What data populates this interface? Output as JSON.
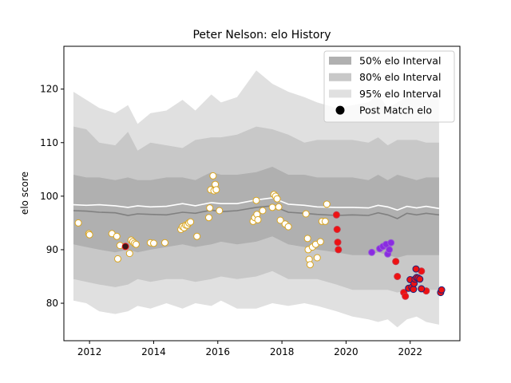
{
  "chart_data": {
    "type": "scatter",
    "title": "Peter Nelson: elo History",
    "xlabel": "",
    "ylabel": "elo score",
    "xlim": [
      2011.2,
      2023.55
    ],
    "ylim": [
      73,
      128
    ],
    "x_ticks": [
      2012,
      2014,
      2016,
      2018,
      2020,
      2022
    ],
    "y_ticks": [
      80,
      90,
      100,
      110,
      120
    ],
    "grid": false,
    "legend_position": "top-right",
    "legend": [
      {
        "label": "50% elo Interval",
        "kind": "band",
        "color": "#b0b0b0"
      },
      {
        "label": "80% elo Interval",
        "kind": "band",
        "color": "#c8c8c8"
      },
      {
        "label": "95% elo Interval",
        "kind": "band",
        "color": "#e0e0e0"
      },
      {
        "label": "Post Match elo",
        "kind": "marker",
        "color": "#000000"
      }
    ],
    "colors": {
      "band95": "#e0e0e0",
      "band80": "#c8c8c8",
      "band50": "#b0b0b0",
      "median_line": "#808080",
      "mean_line": "#ffffff",
      "point_early_fill": "#ffffff",
      "point_early_edge": "#daa520",
      "point_red": "#ee1111",
      "point_purple": "#8a2be2",
      "point_navy_edge": "#1a237e"
    },
    "band95": {
      "x": [
        2011.5,
        2011.9,
        2012.3,
        2012.8,
        2013.2,
        2013.5,
        2013.9,
        2014.4,
        2014.9,
        2015.3,
        2015.8,
        2016.1,
        2016.6,
        2017.2,
        2017.7,
        2018.2,
        2018.7,
        2019.1,
        2019.7,
        2020.2,
        2020.7,
        2021.0,
        2021.3,
        2021.6,
        2021.9,
        2022.2,
        2022.5,
        2022.9
      ],
      "upper": [
        119.5,
        118.0,
        116.5,
        115.5,
        117.0,
        113.5,
        115.5,
        116.0,
        118.0,
        116.0,
        119.0,
        117.5,
        118.5,
        123.5,
        121.0,
        119.5,
        118.5,
        117.5,
        116.5,
        117.0,
        117.5,
        119.0,
        116.5,
        117.5,
        118.5,
        119.0,
        118.0,
        118.5
      ],
      "lower": [
        80.5,
        80.0,
        78.5,
        78.0,
        78.5,
        79.5,
        79.0,
        80.0,
        79.0,
        80.0,
        79.5,
        80.5,
        79.0,
        79.0,
        80.0,
        79.5,
        80.0,
        79.5,
        78.5,
        77.5,
        77.0,
        76.5,
        77.0,
        75.5,
        77.0,
        77.5,
        76.5,
        76.0
      ]
    },
    "band80": {
      "x": [
        2011.5,
        2011.9,
        2012.3,
        2012.8,
        2013.2,
        2013.5,
        2013.9,
        2014.4,
        2014.9,
        2015.3,
        2015.8,
        2016.1,
        2016.6,
        2017.2,
        2017.7,
        2018.2,
        2018.7,
        2019.1,
        2019.7,
        2020.2,
        2020.7,
        2021.0,
        2021.3,
        2021.6,
        2021.9,
        2022.2,
        2022.5,
        2022.9
      ],
      "upper": [
        113.0,
        112.5,
        110.0,
        109.5,
        112.0,
        108.5,
        110.0,
        109.5,
        109.0,
        110.5,
        111.0,
        111.0,
        111.5,
        113.0,
        112.5,
        111.5,
        110.0,
        110.5,
        110.5,
        110.5,
        110.0,
        111.0,
        109.5,
        110.5,
        110.5,
        110.5,
        110.0,
        110.0
      ],
      "lower": [
        84.5,
        84.0,
        83.5,
        83.0,
        83.5,
        84.5,
        84.0,
        84.5,
        84.5,
        84.0,
        84.5,
        85.0,
        84.5,
        85.0,
        86.0,
        84.5,
        84.5,
        84.5,
        83.5,
        82.5,
        82.5,
        82.5,
        82.5,
        82.0,
        82.5,
        82.5,
        82.5,
        82.5
      ]
    },
    "band50": {
      "x": [
        2011.5,
        2011.9,
        2012.3,
        2012.8,
        2013.2,
        2013.5,
        2013.9,
        2014.4,
        2014.9,
        2015.3,
        2015.8,
        2016.1,
        2016.6,
        2017.2,
        2017.7,
        2018.2,
        2018.7,
        2019.1,
        2019.7,
        2020.2,
        2020.7,
        2021.0,
        2021.3,
        2021.6,
        2021.9,
        2022.2,
        2022.5,
        2022.9
      ],
      "upper": [
        104.0,
        103.5,
        103.5,
        103.0,
        103.5,
        103.0,
        103.0,
        103.5,
        103.5,
        103.0,
        104.5,
        104.0,
        104.0,
        104.5,
        105.5,
        104.0,
        104.0,
        103.5,
        103.5,
        103.5,
        103.0,
        104.0,
        103.0,
        104.0,
        103.5,
        103.0,
        103.5,
        103.5
      ],
      "lower": [
        91.0,
        90.5,
        90.0,
        89.5,
        90.0,
        89.5,
        90.0,
        90.5,
        91.0,
        90.5,
        91.0,
        91.5,
        91.0,
        91.5,
        92.5,
        91.0,
        90.5,
        90.0,
        89.5,
        89.0,
        89.0,
        89.5,
        89.0,
        88.5,
        89.0,
        89.0,
        89.0,
        89.0
      ]
    },
    "median_line": {
      "x": [
        2011.5,
        2011.9,
        2012.3,
        2012.8,
        2013.2,
        2013.5,
        2013.9,
        2014.4,
        2014.9,
        2015.3,
        2015.8,
        2016.1,
        2016.6,
        2017.2,
        2017.7,
        2018.2,
        2018.7,
        2019.1,
        2019.7,
        2020.2,
        2020.7,
        2021.0,
        2021.3,
        2021.6,
        2021.9,
        2022.2,
        2022.5,
        2022.9
      ],
      "y": [
        97.3,
        97.2,
        97.0,
        96.9,
        96.4,
        96.7,
        96.6,
        96.5,
        97.0,
        96.8,
        97.4,
        97.1,
        97.3,
        97.9,
        98.2,
        97.0,
        96.8,
        96.6,
        96.4,
        96.5,
        96.4,
        96.9,
        96.5,
        95.8,
        96.8,
        96.5,
        96.8,
        96.5
      ]
    },
    "mean_line": {
      "x": [
        2011.5,
        2011.9,
        2012.3,
        2012.8,
        2013.2,
        2013.5,
        2013.9,
        2014.4,
        2014.9,
        2015.3,
        2015.8,
        2016.1,
        2016.6,
        2017.2,
        2017.7,
        2018.2,
        2018.7,
        2019.1,
        2019.7,
        2020.2,
        2020.7,
        2021.0,
        2021.3,
        2021.6,
        2021.9,
        2022.2,
        2022.5,
        2022.9
      ],
      "y": [
        98.4,
        98.3,
        98.4,
        98.2,
        97.9,
        98.2,
        98.0,
        98.1,
        98.6,
        98.2,
        98.8,
        98.6,
        98.6,
        99.3,
        99.7,
        98.5,
        98.3,
        98.0,
        97.9,
        97.9,
        97.8,
        98.3,
        98.0,
        97.4,
        98.1,
        97.8,
        98.1,
        97.7
      ]
    },
    "series": [
      {
        "style": "early",
        "points": [
          [
            2011.65,
            95.0
          ],
          [
            2011.98,
            93.0
          ],
          [
            2012.0,
            92.8
          ],
          [
            2012.7,
            93.0
          ],
          [
            2012.85,
            92.5
          ],
          [
            2012.88,
            88.3
          ],
          [
            2012.95,
            90.8
          ],
          [
            2013.25,
            89.3
          ],
          [
            2013.3,
            91.8
          ],
          [
            2013.35,
            91.5
          ],
          [
            2013.4,
            91.2
          ],
          [
            2013.45,
            91.0
          ],
          [
            2013.9,
            91.3
          ],
          [
            2014.0,
            91.2
          ],
          [
            2014.35,
            91.3
          ],
          [
            2014.85,
            93.8
          ],
          [
            2014.9,
            94.3
          ],
          [
            2014.95,
            94.1
          ],
          [
            2015.0,
            94.6
          ],
          [
            2015.05,
            94.6
          ],
          [
            2015.1,
            95.0
          ],
          [
            2015.15,
            95.2
          ],
          [
            2015.35,
            92.5
          ],
          [
            2015.72,
            96.0
          ],
          [
            2015.75,
            97.8
          ],
          [
            2015.78,
            101.2
          ],
          [
            2015.85,
            103.8
          ],
          [
            2015.88,
            101.0
          ],
          [
            2015.92,
            102.2
          ],
          [
            2015.95,
            101.2
          ],
          [
            2016.05,
            97.3
          ],
          [
            2017.1,
            95.3
          ],
          [
            2017.15,
            96.0
          ],
          [
            2017.2,
            99.2
          ],
          [
            2017.22,
            96.6
          ],
          [
            2017.25,
            95.6
          ],
          [
            2017.4,
            97.3
          ],
          [
            2017.7,
            97.9
          ],
          [
            2017.75,
            100.3
          ],
          [
            2017.8,
            100.0
          ],
          [
            2017.85,
            99.5
          ],
          [
            2017.9,
            98.0
          ],
          [
            2017.95,
            95.5
          ],
          [
            2018.1,
            94.8
          ],
          [
            2018.2,
            94.3
          ],
          [
            2018.75,
            96.7
          ],
          [
            2018.8,
            92.1
          ],
          [
            2018.82,
            90.0
          ],
          [
            2018.85,
            88.2
          ],
          [
            2018.88,
            87.2
          ],
          [
            2018.95,
            90.5
          ],
          [
            2019.05,
            91.0
          ],
          [
            2019.1,
            88.5
          ],
          [
            2019.2,
            91.5
          ],
          [
            2019.25,
            95.3
          ],
          [
            2019.35,
            95.3
          ],
          [
            2019.4,
            98.5
          ]
        ]
      },
      {
        "style": "dark",
        "points": [
          [
            2013.12,
            90.6
          ]
        ]
      },
      {
        "style": "red",
        "points": [
          [
            2019.7,
            96.5
          ],
          [
            2019.72,
            93.8
          ],
          [
            2019.74,
            91.4
          ],
          [
            2019.76,
            90.0
          ],
          [
            2021.55,
            87.8
          ],
          [
            2021.6,
            85.0
          ],
          [
            2021.8,
            82.0
          ],
          [
            2021.85,
            81.3
          ],
          [
            2022.35,
            86.0
          ],
          [
            2022.5,
            82.3
          ]
        ]
      },
      {
        "style": "purple",
        "points": [
          [
            2020.8,
            89.5
          ],
          [
            2021.05,
            90.2
          ],
          [
            2021.15,
            90.6
          ],
          [
            2021.25,
            91.0
          ],
          [
            2021.3,
            89.2
          ],
          [
            2021.35,
            90.0
          ],
          [
            2021.4,
            91.3
          ]
        ]
      },
      {
        "style": "navy",
        "points": [
          [
            2021.95,
            82.8
          ],
          [
            2022.0,
            84.4
          ],
          [
            2022.05,
            83.0
          ],
          [
            2022.1,
            82.6
          ],
          [
            2022.12,
            83.7
          ],
          [
            2022.15,
            84.5
          ],
          [
            2022.18,
            86.4
          ],
          [
            2022.2,
            84.8
          ],
          [
            2022.25,
            84.7
          ],
          [
            2022.3,
            84.5
          ],
          [
            2022.35,
            82.7
          ],
          [
            2022.95,
            82.0
          ],
          [
            2022.98,
            82.5
          ]
        ]
      }
    ]
  }
}
